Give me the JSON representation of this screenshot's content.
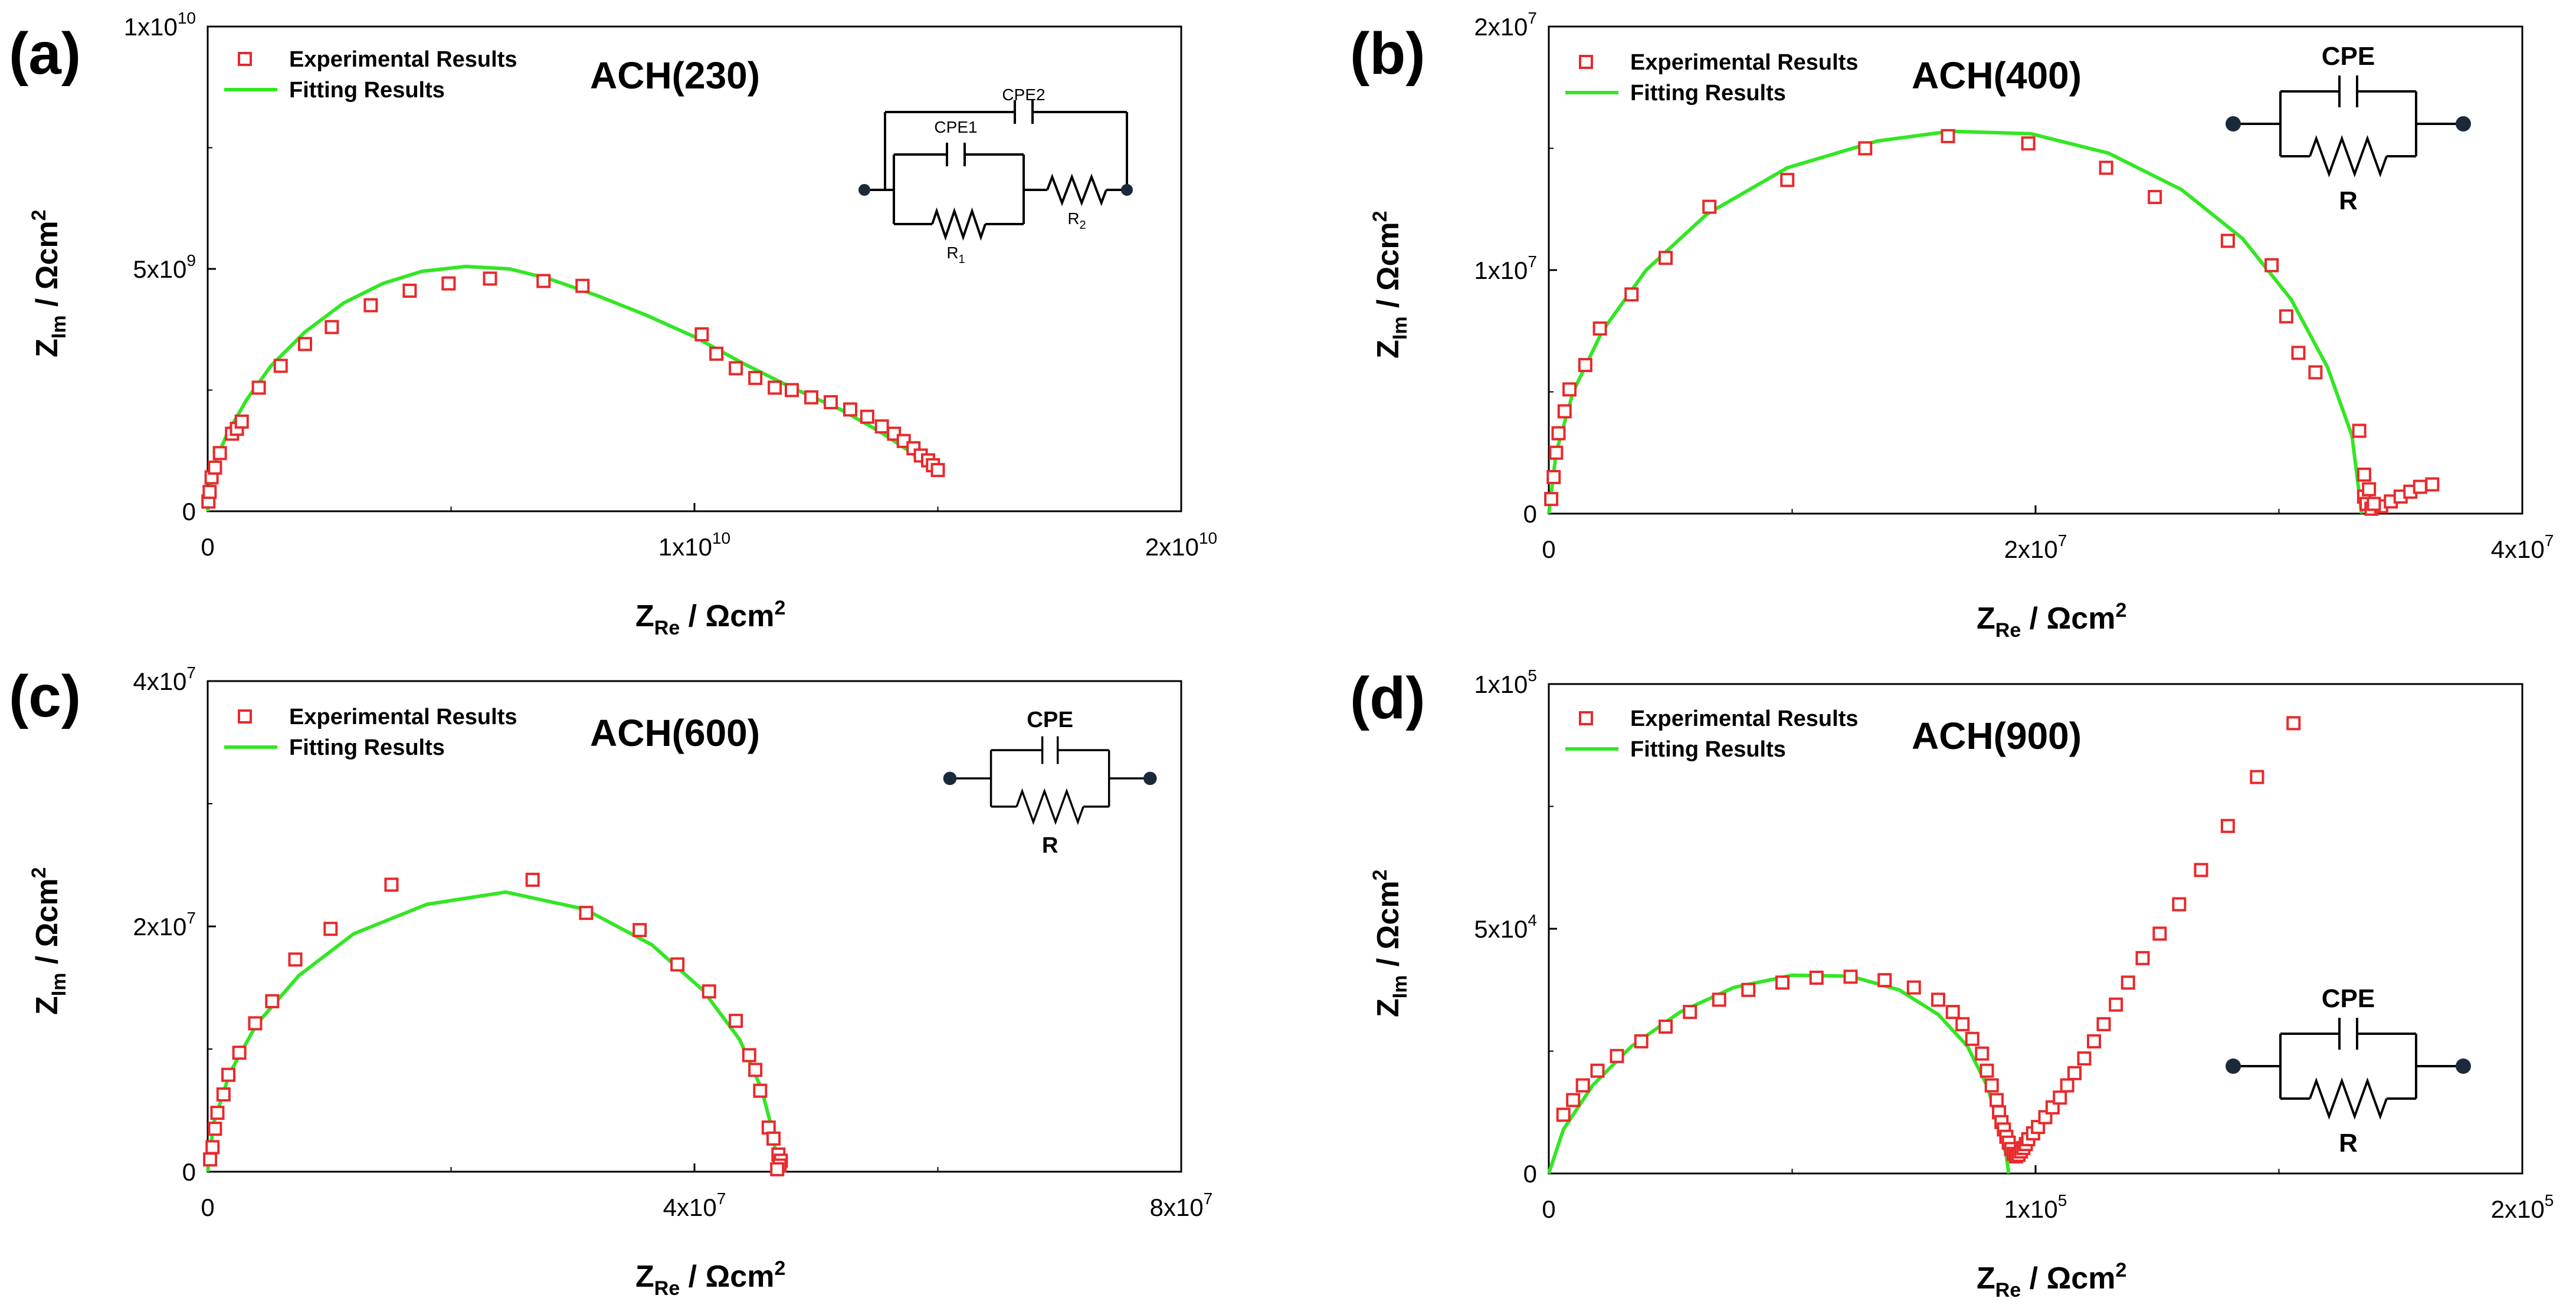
{
  "figure": {
    "legend_experimental": "Experimental Results",
    "legend_fitting": "Fitting Results",
    "colors": {
      "experimental": "#e8292b",
      "fitting": "#33e624",
      "axis": "#000000"
    }
  },
  "chart_data": [
    {
      "panel_label": "(a)",
      "type": "scatter",
      "title": "ACH(230)",
      "xlabel_main": "Z",
      "xlabel_sub": "Re",
      "xlabel_unit": " / Ωcm",
      "xlabel_sup": "2",
      "ylabel_main": "Z",
      "ylabel_sub": "Im",
      "ylabel_unit": " / Ωcm",
      "ylabel_sup": "2",
      "xlim": [
        0,
        20000000000
      ],
      "ylim": [
        0,
        10000000000
      ],
      "xticks": [
        {
          "value": 0,
          "mant": "0",
          "exp": ""
        },
        {
          "value": 10000000000,
          "mant": "1x10",
          "exp": "10"
        },
        {
          "value": 20000000000,
          "mant": "2x10",
          "exp": "10"
        }
      ],
      "yticks": [
        {
          "value": 0,
          "mant": "0",
          "exp": ""
        },
        {
          "value": 5000000000,
          "mant": "5x10",
          "exp": "9"
        },
        {
          "value": 10000000000,
          "mant": "1x10",
          "exp": "10"
        }
      ],
      "legend": "top-left",
      "experimental": [
        [
          15000000,
          200000000
        ],
        [
          40000000,
          400000000
        ],
        [
          80000000,
          700000000
        ],
        [
          150000000,
          900000000
        ],
        [
          250000000,
          1200000000
        ],
        [
          500000000,
          1600000000
        ],
        [
          600000000,
          1700000000
        ],
        [
          700000000,
          1850000000
        ],
        [
          1050000000,
          2550000000
        ],
        [
          1500000000,
          3000000000
        ],
        [
          2000000000,
          3450000000
        ],
        [
          2550000000,
          3800000000
        ],
        [
          3350000000,
          4250000000
        ],
        [
          4150000000,
          4550000000
        ],
        [
          4950000000,
          4700000000
        ],
        [
          5800000000,
          4800000000
        ],
        [
          6900000000,
          4750000000
        ],
        [
          7700000000,
          4650000000
        ],
        [
          10150000000,
          3650000000
        ],
        [
          10450000000,
          3250000000
        ],
        [
          10850000000,
          2950000000
        ],
        [
          11250000000,
          2750000000
        ],
        [
          11650000000,
          2550000000
        ],
        [
          12000000000,
          2500000000
        ],
        [
          12400000000,
          2350000000
        ],
        [
          12800000000,
          2250000000
        ],
        [
          13200000000,
          2100000000
        ],
        [
          13550000000,
          1950000000
        ],
        [
          13850000000,
          1750000000
        ],
        [
          14100000000,
          1600000000
        ],
        [
          14300000000,
          1450000000
        ],
        [
          14500000000,
          1300000000
        ],
        [
          14650000000,
          1150000000
        ],
        [
          14800000000,
          1050000000
        ],
        [
          14900000000,
          950000000
        ],
        [
          15000000000,
          850000000
        ]
      ],
      "fit": [
        [
          0,
          0
        ],
        [
          50000000,
          500000000
        ],
        [
          150000000,
          1000000000
        ],
        [
          400000000,
          1600000000
        ],
        [
          800000000,
          2300000000
        ],
        [
          1300000000,
          3000000000
        ],
        [
          2000000000,
          3700000000
        ],
        [
          2800000000,
          4300000000
        ],
        [
          3600000000,
          4700000000
        ],
        [
          4400000000,
          4950000000
        ],
        [
          5300000000,
          5050000000
        ],
        [
          6200000000,
          5000000000
        ],
        [
          7000000000,
          4800000000
        ],
        [
          8000000000,
          4450000000
        ],
        [
          9000000000,
          4050000000
        ],
        [
          10000000000,
          3600000000
        ],
        [
          11000000000,
          3050000000
        ],
        [
          12000000000,
          2550000000
        ],
        [
          13000000000,
          2100000000
        ],
        [
          13800000000,
          1650000000
        ],
        [
          14400000000,
          1250000000
        ],
        [
          14900000000,
          850000000
        ]
      ],
      "inset": {
        "type": "cpe-series",
        "labels": {
          "cpe_outer": "CPE2",
          "cpe_inner": "CPE1",
          "r1_main": "R",
          "r1_sub": "1",
          "r2_main": "R",
          "r2_sub": "2"
        }
      }
    },
    {
      "panel_label": "(b)",
      "type": "scatter",
      "title": "ACH(400)",
      "xlabel_main": "Z",
      "xlabel_sub": "Re",
      "xlabel_unit": " / Ωcm",
      "xlabel_sup": "2",
      "ylabel_main": "Z",
      "ylabel_sub": "Im",
      "ylabel_unit": " / Ωcm",
      "ylabel_sup": "2",
      "xlim": [
        0,
        40000000
      ],
      "ylim": [
        0,
        20000000
      ],
      "xticks": [
        {
          "value": 0,
          "mant": "0",
          "exp": ""
        },
        {
          "value": 20000000,
          "mant": "2x10",
          "exp": "7"
        },
        {
          "value": 40000000,
          "mant": "4x10",
          "exp": "7"
        }
      ],
      "yticks": [
        {
          "value": 0,
          "mant": "0",
          "exp": ""
        },
        {
          "value": 10000000,
          "mant": "1x10",
          "exp": "7"
        },
        {
          "value": 20000000,
          "mant": "2x10",
          "exp": "7"
        }
      ],
      "legend": "top-left",
      "experimental": [
        [
          100000,
          600000
        ],
        [
          200000,
          1500000
        ],
        [
          300000,
          2500000
        ],
        [
          400000,
          3300000
        ],
        [
          650000,
          4200000
        ],
        [
          850000,
          5100000
        ],
        [
          1500000,
          6100000
        ],
        [
          2100000,
          7600000
        ],
        [
          3400000,
          9000000
        ],
        [
          4800000,
          10500000
        ],
        [
          6600000,
          12600000
        ],
        [
          9800000,
          13700000
        ],
        [
          13000000,
          15000000
        ],
        [
          16400000,
          15500000
        ],
        [
          19700000,
          15200000
        ],
        [
          22900000,
          14200000
        ],
        [
          24900000,
          13000000
        ],
        [
          27900000,
          11200000
        ],
        [
          29700000,
          10200000
        ],
        [
          30300000,
          8100000
        ],
        [
          30800000,
          6600000
        ],
        [
          31500000,
          5800000
        ],
        [
          33300000,
          3400000
        ],
        [
          33500000,
          1600000
        ],
        [
          33500000,
          700000
        ],
        [
          33600000,
          400000
        ],
        [
          33800000,
          200000
        ],
        [
          34200000,
          300000
        ],
        [
          34600000,
          500000
        ],
        [
          35000000,
          700000
        ],
        [
          35400000,
          900000
        ],
        [
          35800000,
          1100000
        ],
        [
          36300000,
          1200000
        ],
        [
          33700000,
          1000000
        ],
        [
          33900000,
          400000
        ]
      ],
      "fit": [
        [
          0,
          0
        ],
        [
          300000,
          2500000
        ],
        [
          1000000,
          5000000
        ],
        [
          2200000,
          7500000
        ],
        [
          4000000,
          10000000
        ],
        [
          6500000,
          12300000
        ],
        [
          9800000,
          14200000
        ],
        [
          13500000,
          15300000
        ],
        [
          16500000,
          15700000
        ],
        [
          19800000,
          15600000
        ],
        [
          23000000,
          14800000
        ],
        [
          26000000,
          13300000
        ],
        [
          28500000,
          11300000
        ],
        [
          30500000,
          8800000
        ],
        [
          32000000,
          6000000
        ],
        [
          33000000,
          3200000
        ],
        [
          33400000,
          0
        ]
      ],
      "inset": {
        "type": "cpe-parallel",
        "labels": {
          "cpe": "CPE",
          "r": "R"
        }
      }
    },
    {
      "panel_label": "(c)",
      "type": "scatter",
      "title": "ACH(600)",
      "xlabel_main": "Z",
      "xlabel_sub": "Re",
      "xlabel_unit": " / Ωcm",
      "xlabel_sup": "2",
      "ylabel_main": "Z",
      "ylabel_sub": "Im",
      "ylabel_unit": " / Ωcm",
      "ylabel_sup": "2",
      "xlim": [
        0,
        80000000
      ],
      "ylim": [
        0,
        40000000
      ],
      "xticks": [
        {
          "value": 0,
          "mant": "0",
          "exp": ""
        },
        {
          "value": 40000000,
          "mant": "4x10",
          "exp": "7"
        },
        {
          "value": 80000000,
          "mant": "8x10",
          "exp": "7"
        }
      ],
      "yticks": [
        {
          "value": 0,
          "mant": "0",
          "exp": ""
        },
        {
          "value": 20000000,
          "mant": "2x10",
          "exp": "7"
        },
        {
          "value": 40000000,
          "mant": "4x10",
          "exp": "7"
        }
      ],
      "legend": "top-left",
      "experimental": [
        [
          200000,
          1000000
        ],
        [
          400000,
          2000000
        ],
        [
          600000,
          3500000
        ],
        [
          800000,
          4800000
        ],
        [
          1300000,
          6300000
        ],
        [
          1700000,
          7900000
        ],
        [
          2600000,
          9700000
        ],
        [
          3900000,
          12100000
        ],
        [
          5300000,
          13900000
        ],
        [
          7200000,
          17300000
        ],
        [
          10100000,
          19800000
        ],
        [
          15100000,
          23400000
        ],
        [
          26700000,
          23800000
        ],
        [
          31100000,
          21100000
        ],
        [
          35500000,
          19700000
        ],
        [
          38600000,
          16900000
        ],
        [
          41200000,
          14700000
        ],
        [
          43400000,
          12300000
        ],
        [
          44500000,
          9500000
        ],
        [
          45000000,
          8300000
        ],
        [
          45400000,
          6600000
        ],
        [
          46100000,
          3600000
        ],
        [
          46500000,
          2700000
        ],
        [
          46900000,
          1400000
        ],
        [
          47100000,
          900000
        ],
        [
          47000000,
          500000
        ],
        [
          46800000,
          200000
        ]
      ],
      "fit": [
        [
          0,
          0
        ],
        [
          500000,
          4000000
        ],
        [
          1800000,
          8000000
        ],
        [
          4000000,
          12000000
        ],
        [
          7500000,
          16000000
        ],
        [
          12000000,
          19400000
        ],
        [
          18000000,
          21800000
        ],
        [
          24500000,
          22800000
        ],
        [
          31000000,
          21400000
        ],
        [
          36500000,
          18500000
        ],
        [
          40700000,
          14800000
        ],
        [
          43700000,
          10800000
        ],
        [
          45500000,
          6800000
        ],
        [
          46500000,
          3000000
        ],
        [
          46800000,
          0
        ]
      ],
      "inset": {
        "type": "cpe-parallel",
        "labels": {
          "cpe": "CPE",
          "r": "R"
        }
      }
    },
    {
      "panel_label": "(d)",
      "type": "scatter",
      "title": "ACH(900)",
      "xlabel_main": "Z",
      "xlabel_sub": "Re",
      "xlabel_unit": " / Ωcm",
      "xlabel_sup": "2",
      "ylabel_main": "Z",
      "ylabel_sub": "Im",
      "ylabel_unit": " / Ωcm",
      "ylabel_sup": "2",
      "xlim": [
        0,
        200000
      ],
      "ylim": [
        0,
        100000
      ],
      "xticks": [
        {
          "value": 0,
          "mant": "0",
          "exp": ""
        },
        {
          "value": 100000,
          "mant": "1x10",
          "exp": "5"
        },
        {
          "value": 200000,
          "mant": "2x10",
          "exp": "5"
        }
      ],
      "yticks": [
        {
          "value": 0,
          "mant": "0",
          "exp": ""
        },
        {
          "value": 50000,
          "mant": "5x10",
          "exp": "4"
        },
        {
          "value": 100000,
          "mant": "1x10",
          "exp": "5"
        }
      ],
      "legend": "top-left",
      "experimental": [
        [
          3000,
          12000
        ],
        [
          5000,
          15000
        ],
        [
          7000,
          18000
        ],
        [
          10000,
          21000
        ],
        [
          14000,
          24000
        ],
        [
          19000,
          27000
        ],
        [
          24000,
          30000
        ],
        [
          29000,
          33000
        ],
        [
          35000,
          35500
        ],
        [
          41000,
          37500
        ],
        [
          48000,
          39000
        ],
        [
          55000,
          40000
        ],
        [
          62000,
          40200
        ],
        [
          69000,
          39500
        ],
        [
          75000,
          38000
        ],
        [
          80000,
          35500
        ],
        [
          83000,
          33000
        ],
        [
          85000,
          30500
        ],
        [
          87000,
          27500
        ],
        [
          89000,
          24500
        ],
        [
          90000,
          21000
        ],
        [
          91000,
          18000
        ],
        [
          92000,
          15000
        ],
        [
          92500,
          12500
        ],
        [
          93000,
          10500
        ],
        [
          93500,
          9000
        ],
        [
          94000,
          7500
        ],
        [
          94500,
          6300
        ],
        [
          95000,
          5000
        ],
        [
          95500,
          4000
        ],
        [
          96000,
          3500
        ],
        [
          96500,
          3800
        ],
        [
          97000,
          4500
        ],
        [
          97500,
          5200
        ],
        [
          98000,
          6000
        ],
        [
          98500,
          7000
        ],
        [
          99500,
          8200
        ],
        [
          100500,
          9500
        ],
        [
          102000,
          11500
        ],
        [
          103500,
          13500
        ],
        [
          105000,
          15500
        ],
        [
          106500,
          18000
        ],
        [
          108000,
          20500
        ],
        [
          110000,
          23500
        ],
        [
          112000,
          27000
        ],
        [
          114000,
          30500
        ],
        [
          116500,
          34500
        ],
        [
          119000,
          39000
        ],
        [
          122000,
          44000
        ],
        [
          125500,
          49000
        ],
        [
          129500,
          55000
        ],
        [
          134000,
          62000
        ],
        [
          139500,
          71000
        ],
        [
          145500,
          81000
        ],
        [
          153000,
          92000
        ]
      ],
      "fit": [
        [
          0,
          0
        ],
        [
          3000,
          9000
        ],
        [
          9000,
          18000
        ],
        [
          17000,
          26000
        ],
        [
          27000,
          33000
        ],
        [
          38000,
          38000
        ],
        [
          50000,
          40500
        ],
        [
          62000,
          40300
        ],
        [
          72000,
          37500
        ],
        [
          80000,
          32500
        ],
        [
          86000,
          26000
        ],
        [
          90000,
          18000
        ],
        [
          92500,
          10000
        ],
        [
          94000,
          3500
        ],
        [
          94500,
          0
        ]
      ],
      "inset": {
        "type": "cpe-parallel",
        "labels": {
          "cpe": "CPE",
          "r": "R"
        }
      }
    }
  ]
}
